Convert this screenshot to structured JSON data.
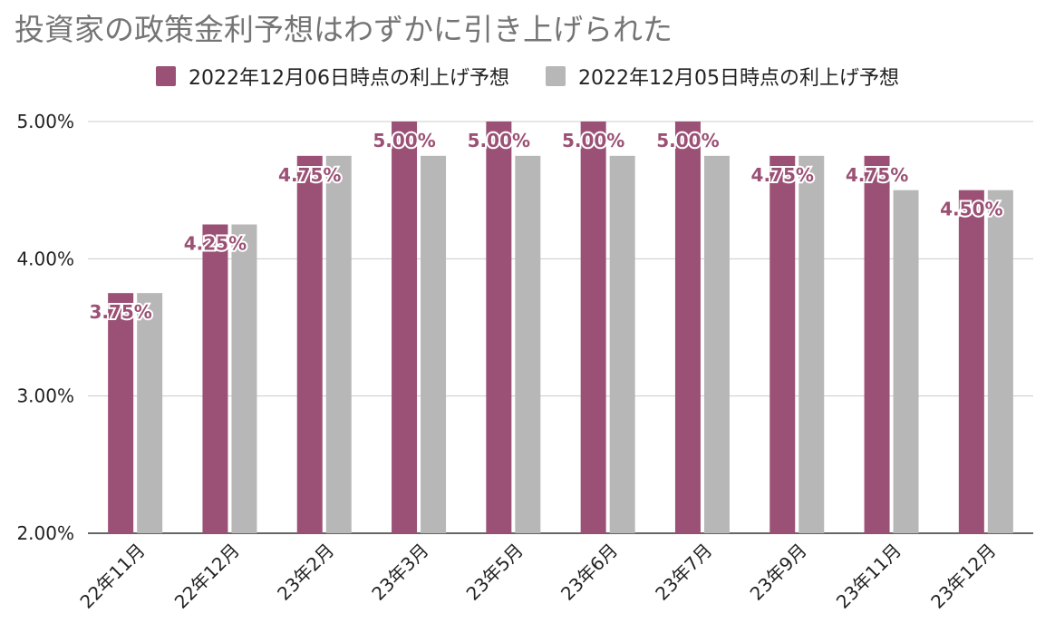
{
  "chart_data": {
    "type": "bar",
    "title": "投資家の政策金利予想はわずかに引き上げられた",
    "categories": [
      "22年11月",
      "22年12月",
      "23年2月",
      "23年3月",
      "23年5月",
      "23年6月",
      "23年7月",
      "23年9月",
      "23年11月",
      "23年12月"
    ],
    "series": [
      {
        "name": "2022年12月06日時点の利上げ予想",
        "color": "#9b5175",
        "values": [
          3.75,
          4.25,
          4.75,
          5.0,
          5.0,
          5.0,
          5.0,
          4.75,
          4.75,
          4.5
        ],
        "data_labels": [
          "3.75%",
          "4.25%",
          "4.75%",
          "5.00%",
          "5.00%",
          "5.00%",
          "5.00%",
          "4.75%",
          "4.75%",
          "4.50%"
        ]
      },
      {
        "name": "2022年12月05日時点の利上げ予想",
        "color": "#b7b7b7",
        "values": [
          3.75,
          4.25,
          4.75,
          4.75,
          4.75,
          4.75,
          4.75,
          4.75,
          4.5,
          4.5
        ]
      }
    ],
    "ylim": [
      2.0,
      5.0
    ],
    "yticks": [
      2.0,
      3.0,
      4.0,
      5.0
    ],
    "ytick_labels": [
      "2.00%",
      "3.00%",
      "4.00%",
      "5.00%"
    ],
    "grid": true,
    "legend": "top-center"
  }
}
